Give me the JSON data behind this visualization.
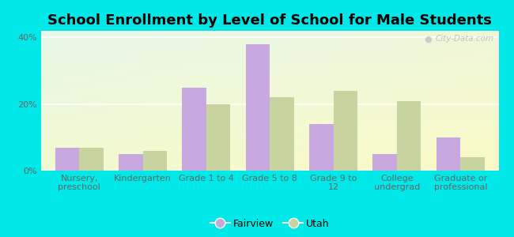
{
  "title": "School Enrollment by Level of School for Male Students",
  "categories": [
    "Nursery,\npreschool",
    "Kindergarten",
    "Grade 1 to 4",
    "Grade 5 to 8",
    "Grade 9 to\n12",
    "College\nundergrad",
    "Graduate or\nprofessional"
  ],
  "fairview_values": [
    7,
    5,
    25,
    38,
    14,
    5,
    10
  ],
  "utah_values": [
    7,
    6,
    20,
    22,
    24,
    21,
    4
  ],
  "fairview_color": "#c9a8e0",
  "utah_color": "#c8d4a0",
  "ylim": [
    0,
    42
  ],
  "yticks": [
    0,
    20,
    40
  ],
  "ytick_labels": [
    "0%",
    "20%",
    "40%"
  ],
  "background_color": "#00e8e8",
  "title_fontsize": 13,
  "tick_fontsize": 8,
  "legend_labels": [
    "Fairview",
    "Utah"
  ],
  "bar_width": 0.38
}
